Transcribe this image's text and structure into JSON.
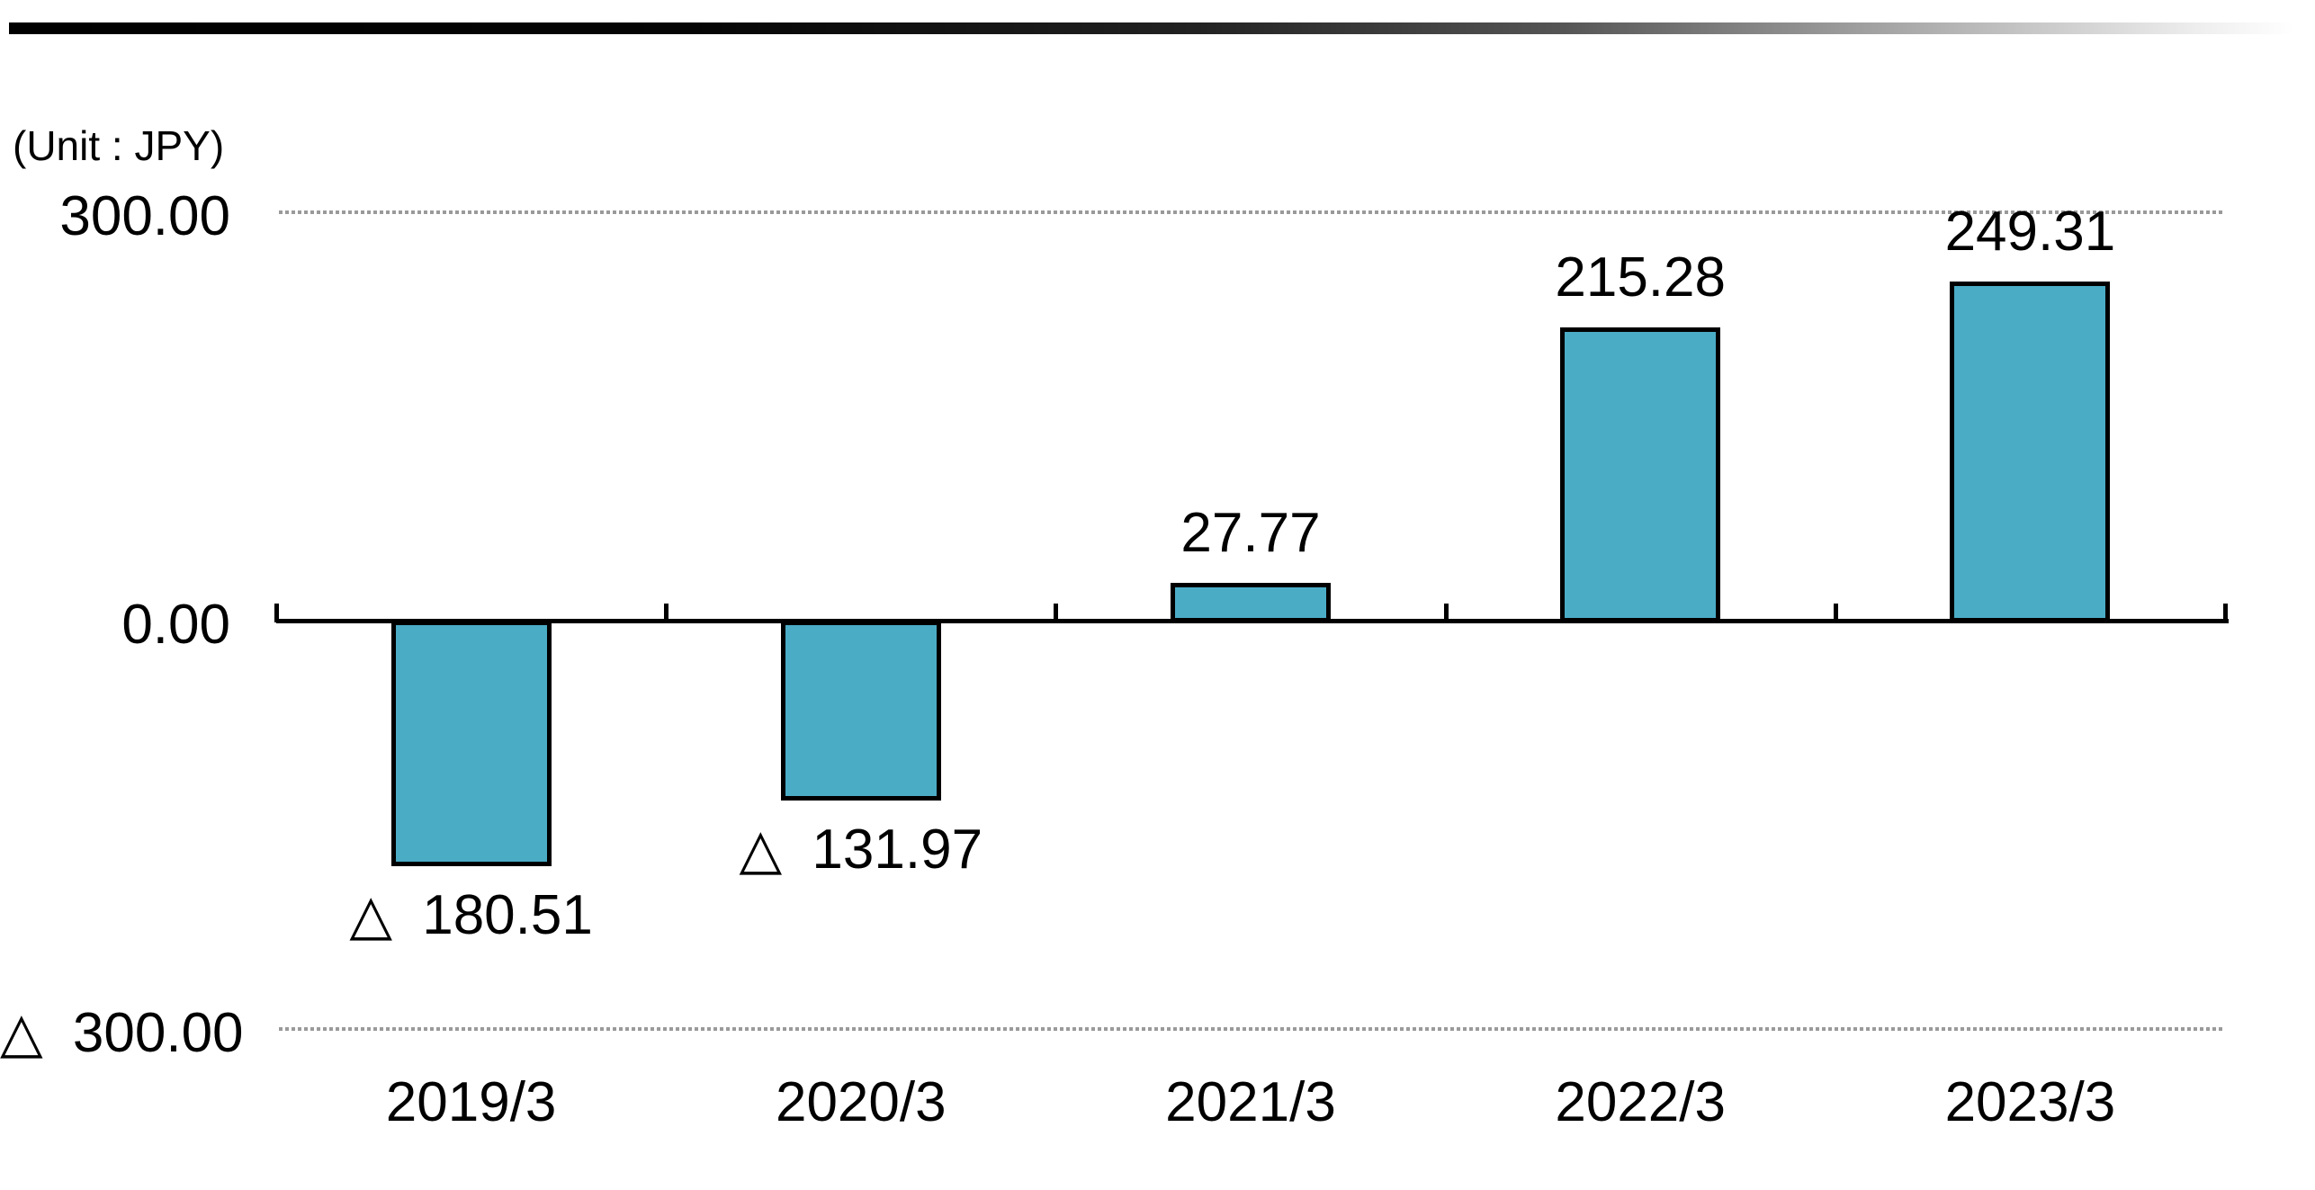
{
  "header": {
    "accent_bar": {
      "style": "black-to-white-horizontal-gradient"
    }
  },
  "chart": {
    "unit_label": "(Unit : JPY)",
    "colors": {
      "bar_fill": "#4BACC6",
      "bar_stroke": "#000000",
      "axis": "#000000",
      "gridline": "#9a9a9a",
      "text": "#000000",
      "background": "#ffffff"
    }
  },
  "chart_data": {
    "type": "bar",
    "title": "",
    "unit": "(Unit : JPY)",
    "categories": [
      "2019/3",
      "2020/3",
      "2021/3",
      "2022/3",
      "2023/3"
    ],
    "values": [
      -180.51,
      -131.97,
      27.77,
      215.28,
      249.31
    ],
    "value_labels": [
      "△ 180.51",
      "△ 131.97",
      "27.77",
      "215.28",
      "249.31"
    ],
    "negative_notation": "triangle",
    "ylim": [
      -300,
      300
    ],
    "y_ticks": [
      {
        "value": 300,
        "label": "300.00",
        "gridline": "dotted"
      },
      {
        "value": 0,
        "label": "0.00",
        "gridline": "axis"
      },
      {
        "value": -300,
        "label": "△ 300.00",
        "gridline": "dotted"
      }
    ],
    "grid": "horizontal-dotted",
    "legend": "none",
    "xlabel": "",
    "ylabel": ""
  }
}
